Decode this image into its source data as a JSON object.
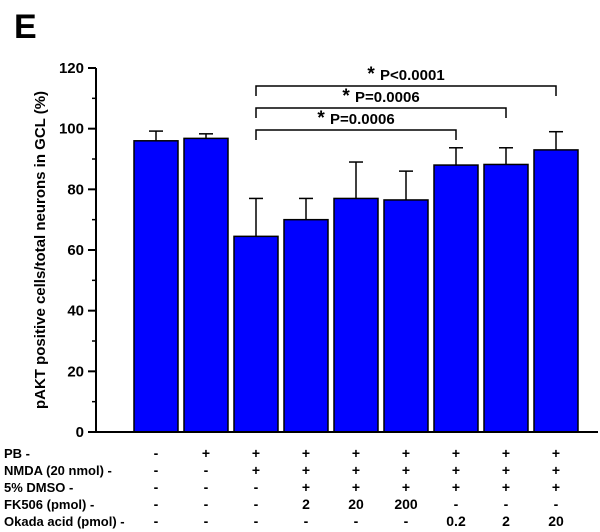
{
  "panel_label": "E",
  "chart_data": {
    "type": "bar",
    "ylabel": "pAKT positive cells/total neurons in GCL (%)",
    "xlabel": "",
    "ylim": [
      0,
      120
    ],
    "yticks": [
      0,
      20,
      40,
      60,
      80,
      100,
      120
    ],
    "grid": false,
    "bar_color": "#0000ff",
    "values": [
      96,
      96.8,
      64.5,
      70,
      77,
      76.5,
      88,
      88.2,
      93
    ],
    "errors": [
      3.2,
      1.5,
      12.5,
      7,
      12,
      9.5,
      5.7,
      5.5,
      6
    ],
    "treatment_rows": [
      {
        "label": "PB",
        "cells": [
          "-",
          "+",
          "+",
          "+",
          "+",
          "+",
          "+",
          "+",
          "+"
        ]
      },
      {
        "label": "NMDA (20 nmol)",
        "cells": [
          "-",
          "-",
          "+",
          "+",
          "+",
          "+",
          "+",
          "+",
          "+"
        ]
      },
      {
        "label": "5% DMSO",
        "cells": [
          "-",
          "-",
          "-",
          "+",
          "+",
          "+",
          "+",
          "+",
          "+"
        ]
      },
      {
        "label": "FK506 (pmol)",
        "cells": [
          "-",
          "-",
          "-",
          "2",
          "20",
          "200",
          "-",
          "-",
          "-"
        ]
      },
      {
        "label": "Okada acid (pmol)",
        "cells": [
          "-",
          "-",
          "-",
          "-",
          "-",
          "-",
          "0.2",
          "2",
          "20"
        ]
      }
    ],
    "row_label_suffix": " -",
    "significance": [
      {
        "from": 2,
        "to": 8,
        "star": "*",
        "text": "P<0.0001"
      },
      {
        "from": 2,
        "to": 7,
        "star": "*",
        "text": "P=0.0006"
      },
      {
        "from": 2,
        "to": 6,
        "star": "*",
        "text": "P=0.0006"
      }
    ]
  }
}
